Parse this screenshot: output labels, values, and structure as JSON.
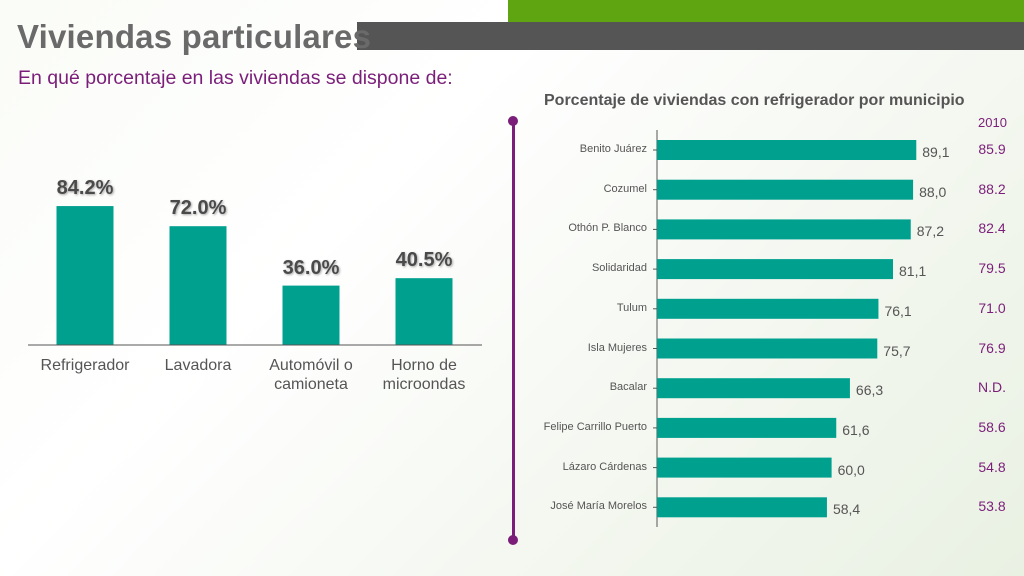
{
  "header": {
    "title": "Viviendas particulares",
    "subtitle": "En qué porcentaje en las viviendas se dispone de:"
  },
  "colors": {
    "bar": "#00a08f",
    "accent": "#7b1e7a",
    "green": "#5fa512",
    "gray": "#555556"
  },
  "chart_data": [
    {
      "type": "bar",
      "title": "",
      "categories": [
        "Refrigerador",
        "Lavadora",
        "Automóvil o camioneta",
        "Horno de microondas"
      ],
      "category_lines": [
        [
          "Refrigerador"
        ],
        [
          "Lavadora"
        ],
        [
          "Automóvil o",
          "camioneta"
        ],
        [
          "Horno de",
          "microondas"
        ]
      ],
      "values": [
        84.2,
        72.0,
        36.0,
        40.5
      ],
      "value_labels": [
        "84.2%",
        "72.0%",
        "36.0%",
        "40.5%"
      ],
      "ylim": [
        0,
        100
      ]
    },
    {
      "type": "bar",
      "orientation": "horizontal",
      "title": "Porcentaje de viviendas con refrigerador por municipio",
      "categories": [
        "Benito Juárez",
        "Cozumel",
        "Othón P. Blanco",
        "Solidaridad",
        "Tulum",
        "Isla Mujeres",
        "Bacalar",
        "Felipe Carrillo Puerto",
        "Lázaro Cárdenas",
        "José María Morelos"
      ],
      "values": [
        89.1,
        88.0,
        87.2,
        81.1,
        76.1,
        75.7,
        66.3,
        61.6,
        60.0,
        58.4
      ],
      "value_labels": [
        "89,1",
        "88,0",
        "87,2",
        "81,1",
        "76,1",
        "75,7",
        "66,3",
        "61,6",
        "60,0",
        "58,4"
      ],
      "comparison_label": "2010",
      "comparison_values": [
        "85.9",
        "88.2",
        "82.4",
        "79.5",
        "71.0",
        "76.9",
        "N.D.",
        "58.6",
        "54.8",
        "53.8"
      ],
      "xlim": [
        0,
        100
      ]
    }
  ]
}
